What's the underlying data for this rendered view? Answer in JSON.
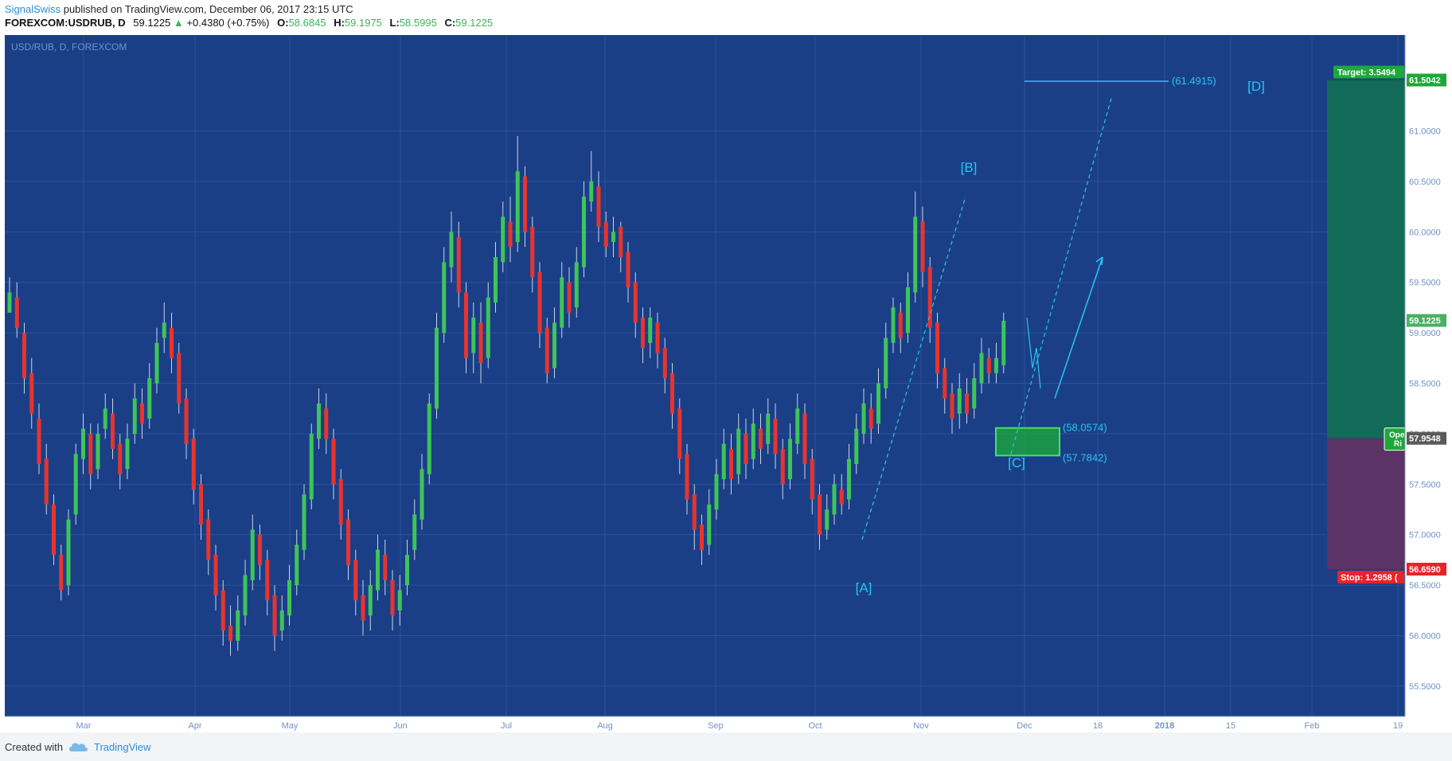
{
  "header": {
    "author": "SignalSwiss",
    "published": "published on TradingView.com, December 06, 2017 23:15 UTC",
    "symbol": "FOREXCOM:USDRUB, D",
    "last": "59.1225",
    "change_arrow": "▲",
    "change": "+0.4380 (+0.75%)",
    "o_label": "O:",
    "o_value": "58.6845",
    "h_label": "H:",
    "h_value": "59.1975",
    "l_label": "L:",
    "l_value": "58.5995",
    "c_label": "C:",
    "c_value": "59.1225"
  },
  "footer": {
    "created_with": "Created with",
    "brand": "TradingView"
  },
  "colors": {
    "background": "#1b3f86",
    "grid": "#2a519a",
    "up": "#3ec45a",
    "down": "#e8332e",
    "wick": "#c9d3e6",
    "annotation": "#26c6f6",
    "target_zone": "#126a58",
    "stop_zone": "#5b3366",
    "axis_text": "#6f92c8"
  },
  "chart_data": {
    "type": "candlestick",
    "symbol_label": "USD/RUB, D, FOREXCOM",
    "ylim": [
      55.2,
      61.95
    ],
    "y_ticks": [
      "55.5000",
      "56.0000",
      "56.5000",
      "57.0000",
      "57.5000",
      "58.0000",
      "58.5000",
      "59.0000",
      "59.5000",
      "60.0000",
      "60.5000",
      "61.0000"
    ],
    "x_ticks": [
      "Mar",
      "Apr",
      "May",
      "Jun",
      "Jul",
      "Aug",
      "Sep",
      "Oct",
      "Nov",
      "Dec",
      "18",
      "2018",
      "15",
      "Feb",
      "19"
    ],
    "candles": [
      [
        59.2,
        59.4,
        59.55,
        59.2
      ],
      [
        59.35,
        59.05,
        59.5,
        58.95
      ],
      [
        59.0,
        58.55,
        59.1,
        58.4
      ],
      [
        58.6,
        58.2,
        58.75,
        58.05
      ],
      [
        58.15,
        57.7,
        58.3,
        57.6
      ],
      [
        57.75,
        57.3,
        57.9,
        57.2
      ],
      [
        57.3,
        56.8,
        57.4,
        56.7
      ],
      [
        56.8,
        56.45,
        56.9,
        56.35
      ],
      [
        56.5,
        57.15,
        57.25,
        56.4
      ],
      [
        57.2,
        57.8,
        57.9,
        57.1
      ],
      [
        57.75,
        58.05,
        58.2,
        57.6
      ],
      [
        58.0,
        57.6,
        58.1,
        57.45
      ],
      [
        57.65,
        58.0,
        58.1,
        57.55
      ],
      [
        58.05,
        58.25,
        58.4,
        57.95
      ],
      [
        58.2,
        57.85,
        58.35,
        57.75
      ],
      [
        57.9,
        57.6,
        58.0,
        57.45
      ],
      [
        57.65,
        57.95,
        58.1,
        57.55
      ],
      [
        58.0,
        58.35,
        58.5,
        57.9
      ],
      [
        58.3,
        58.1,
        58.45,
        57.95
      ],
      [
        58.15,
        58.55,
        58.7,
        58.05
      ],
      [
        58.5,
        58.9,
        59.05,
        58.4
      ],
      [
        58.95,
        59.1,
        59.3,
        58.8
      ],
      [
        59.05,
        58.75,
        59.2,
        58.6
      ],
      [
        58.8,
        58.3,
        58.9,
        58.2
      ],
      [
        58.35,
        57.9,
        58.45,
        57.75
      ],
      [
        57.95,
        57.45,
        58.05,
        57.3
      ],
      [
        57.5,
        57.1,
        57.6,
        56.95
      ],
      [
        57.15,
        56.75,
        57.25,
        56.6
      ],
      [
        56.8,
        56.4,
        56.9,
        56.25
      ],
      [
        56.45,
        56.05,
        56.55,
        55.9
      ],
      [
        56.1,
        55.95,
        56.3,
        55.8
      ],
      [
        55.95,
        56.25,
        56.4,
        55.85
      ],
      [
        56.2,
        56.6,
        56.75,
        56.1
      ],
      [
        56.55,
        57.05,
        57.2,
        56.45
      ],
      [
        57.0,
        56.7,
        57.1,
        56.55
      ],
      [
        56.75,
        56.35,
        56.85,
        56.2
      ],
      [
        56.4,
        56.0,
        56.5,
        55.85
      ],
      [
        56.05,
        56.25,
        56.4,
        55.95
      ],
      [
        56.2,
        56.55,
        56.7,
        56.1
      ],
      [
        56.5,
        56.9,
        57.05,
        56.4
      ],
      [
        56.85,
        57.4,
        57.5,
        56.75
      ],
      [
        57.35,
        58.0,
        58.1,
        57.25
      ],
      [
        57.95,
        58.3,
        58.45,
        57.85
      ],
      [
        58.25,
        57.95,
        58.4,
        57.8
      ],
      [
        57.95,
        57.5,
        58.05,
        57.35
      ],
      [
        57.55,
        57.1,
        57.65,
        56.95
      ],
      [
        57.15,
        56.7,
        57.25,
        56.55
      ],
      [
        56.75,
        56.35,
        56.85,
        56.2
      ],
      [
        56.4,
        56.15,
        56.55,
        56.0
      ],
      [
        56.2,
        56.5,
        56.65,
        56.05
      ],
      [
        56.45,
        56.85,
        57.0,
        56.35
      ],
      [
        56.8,
        56.55,
        56.95,
        56.4
      ],
      [
        56.55,
        56.2,
        56.65,
        56.05
      ],
      [
        56.25,
        56.45,
        56.6,
        56.1
      ],
      [
        56.5,
        56.8,
        56.95,
        56.4
      ],
      [
        56.85,
        57.2,
        57.35,
        56.75
      ],
      [
        57.15,
        57.65,
        57.8,
        57.05
      ],
      [
        57.6,
        58.3,
        58.4,
        57.5
      ],
      [
        58.25,
        59.05,
        59.2,
        58.15
      ],
      [
        59.0,
        59.7,
        59.85,
        58.9
      ],
      [
        59.65,
        60.0,
        60.2,
        59.5
      ],
      [
        59.95,
        59.4,
        60.1,
        59.25
      ],
      [
        59.4,
        58.75,
        59.5,
        58.6
      ],
      [
        58.8,
        59.15,
        59.3,
        58.6
      ],
      [
        59.1,
        58.7,
        59.3,
        58.5
      ],
      [
        58.75,
        59.35,
        59.5,
        58.65
      ],
      [
        59.3,
        59.75,
        59.9,
        59.2
      ],
      [
        59.7,
        60.15,
        60.3,
        59.6
      ],
      [
        60.1,
        59.85,
        60.35,
        59.7
      ],
      [
        59.9,
        60.6,
        60.95,
        59.8
      ],
      [
        60.55,
        60.0,
        60.65,
        59.85
      ],
      [
        60.05,
        59.55,
        60.15,
        59.4
      ],
      [
        59.6,
        59.0,
        59.7,
        58.85
      ],
      [
        59.05,
        58.6,
        59.15,
        58.5
      ],
      [
        58.65,
        59.1,
        59.25,
        58.55
      ],
      [
        59.05,
        59.55,
        59.7,
        58.95
      ],
      [
        59.5,
        59.2,
        59.65,
        59.05
      ],
      [
        59.25,
        59.7,
        59.85,
        59.15
      ],
      [
        59.65,
        60.35,
        60.5,
        59.55
      ],
      [
        60.3,
        60.5,
        60.8,
        60.2
      ],
      [
        60.45,
        60.05,
        60.6,
        59.9
      ],
      [
        60.1,
        59.85,
        60.2,
        59.75
      ],
      [
        59.9,
        60.0,
        60.15,
        59.75
      ],
      [
        60.05,
        59.75,
        60.1,
        59.6
      ],
      [
        59.8,
        59.45,
        59.9,
        59.3
      ],
      [
        59.5,
        59.1,
        59.6,
        58.95
      ],
      [
        59.15,
        58.85,
        59.25,
        58.7
      ],
      [
        58.9,
        59.15,
        59.25,
        58.75
      ],
      [
        59.1,
        58.8,
        59.2,
        58.65
      ],
      [
        58.85,
        58.55,
        58.95,
        58.4
      ],
      [
        58.6,
        58.2,
        58.7,
        58.05
      ],
      [
        58.25,
        57.75,
        58.35,
        57.6
      ],
      [
        57.8,
        57.35,
        57.9,
        57.2
      ],
      [
        57.4,
        57.05,
        57.5,
        56.85
      ],
      [
        57.1,
        56.85,
        57.2,
        56.7
      ],
      [
        56.9,
        57.3,
        57.45,
        56.8
      ],
      [
        57.25,
        57.6,
        57.75,
        57.15
      ],
      [
        57.55,
        57.9,
        58.05,
        57.45
      ],
      [
        57.85,
        57.55,
        58.0,
        57.4
      ],
      [
        57.6,
        58.05,
        58.2,
        57.5
      ],
      [
        58.0,
        57.7,
        58.15,
        57.55
      ],
      [
        57.75,
        58.1,
        58.25,
        57.65
      ],
      [
        58.05,
        57.85,
        58.2,
        57.7
      ],
      [
        57.9,
        58.2,
        58.35,
        57.8
      ],
      [
        58.15,
        57.8,
        58.3,
        57.65
      ],
      [
        57.85,
        57.5,
        57.95,
        57.35
      ],
      [
        57.55,
        57.95,
        58.1,
        57.45
      ],
      [
        57.9,
        58.25,
        58.4,
        57.8
      ],
      [
        58.2,
        57.7,
        58.3,
        57.55
      ],
      [
        57.75,
        57.35,
        57.85,
        57.2
      ],
      [
        57.4,
        57.0,
        57.5,
        56.85
      ],
      [
        57.05,
        57.25,
        57.4,
        56.95
      ],
      [
        57.2,
        57.5,
        57.6,
        57.1
      ],
      [
        57.45,
        57.3,
        57.6,
        57.2
      ],
      [
        57.35,
        57.75,
        57.9,
        57.25
      ],
      [
        57.7,
        58.05,
        58.2,
        57.6
      ],
      [
        58.0,
        58.3,
        58.45,
        57.9
      ],
      [
        58.25,
        58.05,
        58.4,
        57.9
      ],
      [
        58.1,
        58.5,
        58.65,
        58.0
      ],
      [
        58.45,
        58.95,
        59.1,
        58.35
      ],
      [
        58.9,
        59.25,
        59.35,
        58.8
      ],
      [
        59.2,
        58.95,
        59.3,
        58.8
      ],
      [
        59.0,
        59.45,
        59.6,
        58.9
      ],
      [
        59.4,
        60.15,
        60.4,
        59.3
      ],
      [
        60.1,
        59.6,
        60.25,
        59.45
      ],
      [
        59.65,
        59.05,
        59.75,
        58.9
      ],
      [
        59.1,
        58.6,
        59.2,
        58.45
      ],
      [
        58.65,
        58.35,
        58.75,
        58.2
      ],
      [
        58.4,
        58.15,
        58.5,
        58.0
      ],
      [
        58.2,
        58.45,
        58.6,
        58.05
      ],
      [
        58.4,
        58.2,
        58.55,
        58.1
      ],
      [
        58.25,
        58.55,
        58.7,
        58.15
      ],
      [
        58.5,
        58.8,
        58.95,
        58.4
      ],
      [
        58.75,
        58.6,
        58.85,
        58.5
      ],
      [
        58.6,
        58.75,
        58.9,
        58.5
      ],
      [
        58.68,
        59.12,
        59.2,
        58.6
      ]
    ],
    "levels": [
      {
        "label": "(61.4915)",
        "value": 61.4915
      },
      {
        "label": "(58.0574)",
        "value": 58.0574
      },
      {
        "label": "(57.7842)",
        "value": 57.7842
      }
    ],
    "wave_labels": [
      "[A]",
      "[B]",
      "[C]",
      "[D]"
    ],
    "position": {
      "entry_label": "57.9548",
      "target_label": "Target: 3.5494",
      "target_value": "61.5042",
      "stop_label": "Stop: 1.2958 (",
      "stop_value": "56.6590",
      "open_label": "Ope",
      "risk_label": "Ri",
      "entry": 57.9548,
      "target": 61.5042,
      "stop": 56.659
    },
    "last_price_label": "59.1225",
    "last_price": 59.1225
  }
}
